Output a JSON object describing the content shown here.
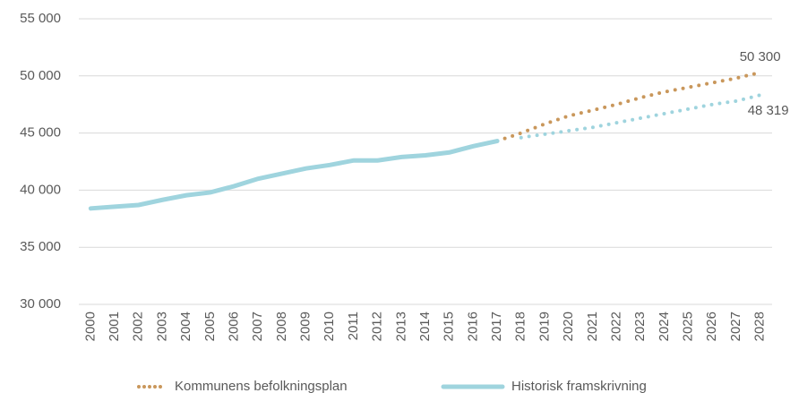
{
  "chart_data": {
    "type": "line",
    "categories": [
      "2000",
      "2001",
      "2002",
      "2003",
      "2004",
      "2005",
      "2006",
      "2007",
      "2008",
      "2009",
      "2010",
      "2011",
      "2012",
      "2013",
      "2014",
      "2015",
      "2016",
      "2017",
      "2018",
      "2019",
      "2020",
      "2021",
      "2022",
      "2023",
      "2024",
      "2025",
      "2026",
      "2027",
      "2028"
    ],
    "series": [
      {
        "name": "Kommunens befolkningsplan",
        "color": "#c9975b",
        "style": "dotted",
        "values": [
          null,
          null,
          null,
          null,
          null,
          null,
          null,
          null,
          null,
          null,
          null,
          null,
          null,
          null,
          null,
          null,
          null,
          44300,
          45000,
          45800,
          46500,
          47000,
          47500,
          48100,
          48600,
          49000,
          49400,
          49800,
          50300
        ],
        "value_labels": [
          null,
          null,
          null,
          null,
          null,
          null,
          null,
          null,
          null,
          null,
          null,
          null,
          null,
          null,
          null,
          null,
          null,
          null,
          null,
          null,
          null,
          null,
          null,
          null,
          null,
          null,
          null,
          null,
          "50 300"
        ]
      },
      {
        "name": "Historisk framskrivning",
        "color": "#9fd4de",
        "style": "solid",
        "dotted_from": "2017",
        "values": [
          38400,
          38550,
          38700,
          39150,
          39550,
          39800,
          40350,
          41000,
          41450,
          41900,
          42200,
          42600,
          42600,
          42900,
          43050,
          43300,
          43850,
          44300,
          44600,
          44900,
          45200,
          45500,
          45900,
          46300,
          46700,
          47100,
          47500,
          47800,
          48319
        ],
        "value_labels": [
          null,
          null,
          null,
          null,
          null,
          null,
          null,
          null,
          null,
          null,
          null,
          null,
          null,
          null,
          null,
          null,
          null,
          null,
          null,
          null,
          null,
          null,
          null,
          null,
          null,
          null,
          null,
          null,
          "48 319"
        ]
      }
    ],
    "ylim": [
      30000,
      55000
    ],
    "yticks": [
      {
        "value": 30000,
        "label": "30 000"
      },
      {
        "value": 35000,
        "label": "35 000"
      },
      {
        "value": 40000,
        "label": "40 000"
      },
      {
        "value": 45000,
        "label": "45 000"
      },
      {
        "value": 50000,
        "label": "50 000"
      },
      {
        "value": 55000,
        "label": "55 000"
      }
    ],
    "grid": true,
    "legend": "bottom"
  }
}
